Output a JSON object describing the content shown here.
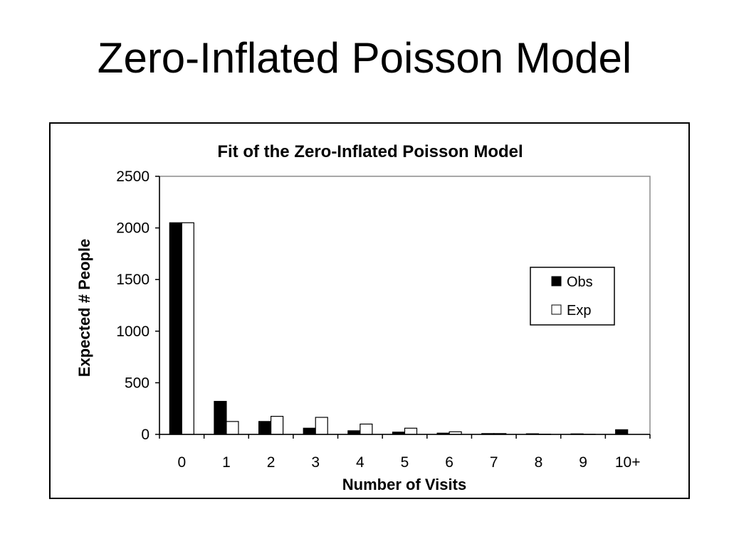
{
  "slide": {
    "title": "Zero-Inflated Poisson Model"
  },
  "chart_data": {
    "type": "bar",
    "title": "Fit of the Zero-Inflated Poisson Model",
    "xlabel": "Number of Visits",
    "ylabel": "Expected # People",
    "categories": [
      "0",
      "1",
      "2",
      "3",
      "4",
      "5",
      "6",
      "7",
      "8",
      "9",
      "10+"
    ],
    "series": [
      {
        "name": "Obs",
        "color": "#000000",
        "values": [
          2050,
          320,
          125,
          60,
          35,
          22,
          12,
          8,
          6,
          5,
          45
        ]
      },
      {
        "name": "Exp",
        "color": "#ffffff",
        "values": [
          2050,
          125,
          175,
          165,
          100,
          60,
          25,
          8,
          2,
          1,
          0
        ]
      }
    ],
    "ylim": [
      0,
      2500
    ],
    "yticks": [
      0,
      500,
      1000,
      1500,
      2000,
      2500
    ],
    "grid": false,
    "legend_position": "right"
  }
}
